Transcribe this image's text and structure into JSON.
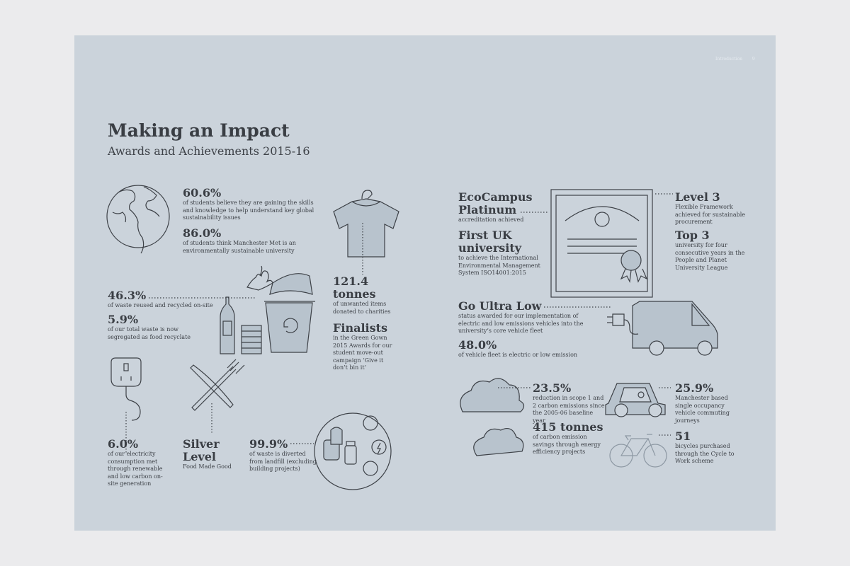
{
  "running_header": {
    "section": "Introduction",
    "page": "9"
  },
  "heading": {
    "title": "Making an Impact",
    "subtitle": "Awards and Achievements 2015-16"
  },
  "left": {
    "stat1": {
      "value": "60.6%",
      "text": "of students believe they are gaining the skills and knowledge to help understand key global sustainability issues"
    },
    "stat2": {
      "value": "86.0%",
      "text": "of students think Manchester Met is an environmentally sustainable university"
    },
    "stat3": {
      "value": "121.4 tonnes",
      "text": "of unwanted items donated to charities"
    },
    "stat4": {
      "value": "Finalists",
      "text": "in the Green Gown 2015 Awards for our student move-out campaign ‘Give it don’t bin it’"
    },
    "stat5": {
      "value": "46.3%",
      "text": "of waste reused and recycled on-site"
    },
    "stat6": {
      "value": "5.9%",
      "text": "of our total waste is now segregated as food recyclate"
    },
    "stat7": {
      "value": "6.0%",
      "text": "of our electricity consumption met through renewable and low carbon on-site generation"
    },
    "stat8": {
      "value": "Silver Level",
      "text": "Food Made Good"
    },
    "stat9": {
      "value": "99.9%",
      "text": "of waste is diverted from landfill (excluding building projects)"
    }
  },
  "right": {
    "stat1": {
      "value": "EcoCampus Platinum",
      "text": "accreditation achieved"
    },
    "stat2": {
      "value": "First UK university",
      "text": "to achieve the International Environmental Management System ISO14001:2015"
    },
    "stat3": {
      "value": "Level 3",
      "text": "Flexible Framework achieved for sustainable procurement"
    },
    "stat4": {
      "value": "Top 3",
      "text": "university for four consecutive years in the People and Planet University League"
    },
    "stat5": {
      "value": "Go Ultra Low",
      "text": "status awarded for our implementation of electric and low emissions vehicles into the university’s core vehicle fleet"
    },
    "stat6": {
      "value": "48.0%",
      "text": "of vehicle fleet is electric or low emission"
    },
    "stat7": {
      "value": "23.5%",
      "text": "reduction in scope 1 and 2 carbon emissions since the 2005-06 baseline year"
    },
    "stat8": {
      "value": "415 tonnes",
      "text": "of carbon emission savings through energy efficiency projects"
    },
    "stat9": {
      "value": "25.9%",
      "text": "Manchester based single occupancy vehicle commuting journeys"
    },
    "stat10": {
      "value": "51",
      "text": "bicycles purchased through the Cycle to Work scheme"
    }
  },
  "icons": [
    "globe-icon",
    "tshirt-icon",
    "recycle-bin-icon",
    "bottle-icon",
    "can-icon",
    "banana-peel-icon",
    "plug-icon",
    "cutlery-icon",
    "plate-icon",
    "certificate-icon",
    "van-icon",
    "ev-plug-icon",
    "cloud-icon",
    "car-icon",
    "bicycle-icon"
  ],
  "colors": {
    "page": "#cbd3db",
    "background": "#ebebed",
    "ink": "#3d4147",
    "icon_fill": "#b8c3cd"
  }
}
